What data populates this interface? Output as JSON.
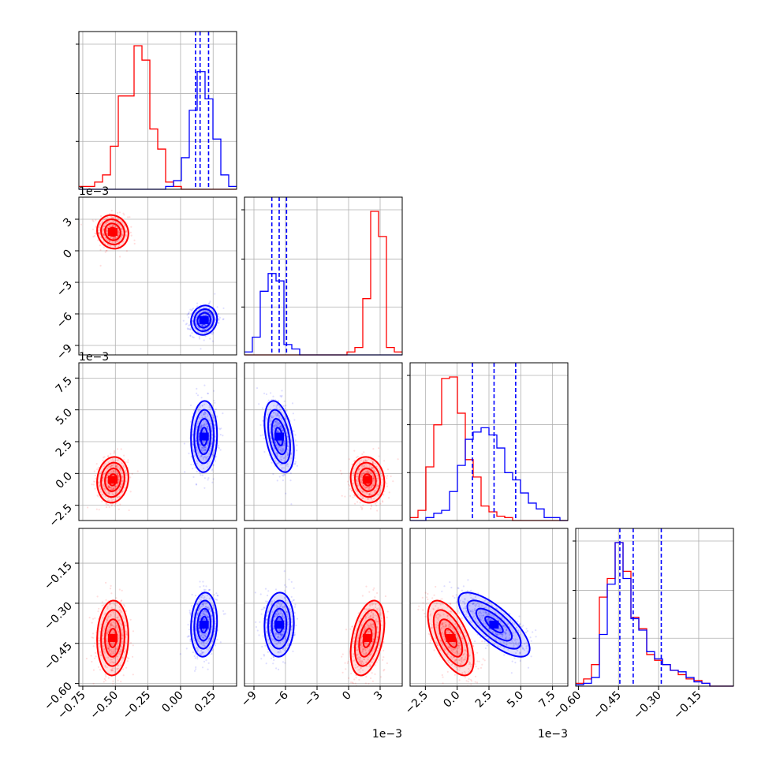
{
  "chart_data": {
    "type": "corner",
    "parameters": [
      {
        "id": "p0",
        "range": [
          -0.78,
          0.43
        ],
        "ticks": [
          -0.75,
          -0.5,
          -0.25,
          0.0,
          0.25
        ],
        "tick_labels": [
          "−0.75",
          "−0.50",
          "−0.25",
          "0.00",
          "0.25"
        ],
        "offset_label": ""
      },
      {
        "id": "p1",
        "range": [
          -0.0099,
          0.0051
        ],
        "ticks": [
          -0.009,
          -0.006,
          -0.003,
          0.0,
          0.003
        ],
        "tick_labels": [
          "−9",
          "−6",
          "−3",
          "0",
          "3"
        ],
        "offset_label": "1e−3"
      },
      {
        "id": "p2",
        "range": [
          -0.0037,
          0.0087
        ],
        "ticks": [
          -0.0025,
          0.0,
          0.0025,
          0.005,
          0.0075
        ],
        "tick_labels": [
          "−2.5",
          "0.0",
          "2.5",
          "5.0",
          "7.5"
        ],
        "offset_label": "1e−3"
      },
      {
        "id": "p3",
        "range": [
          -0.61,
          -0.02
        ],
        "ticks": [
          -0.6,
          -0.45,
          -0.3,
          -0.15
        ],
        "tick_labels": [
          "−0.60",
          "−0.45",
          "−0.30",
          "−0.15"
        ],
        "offset_label": ""
      }
    ],
    "series": [
      {
        "color": "#ff0000",
        "mean": [
          -0.52,
          0.0018,
          -0.0005,
          -0.43
        ],
        "sd": [
          0.06,
          0.0008,
          0.0009,
          0.07
        ],
        "corr": [
          [
            0,
            1,
            -0.1
          ],
          [
            0,
            2,
            0.1
          ],
          [
            0,
            3,
            0.05
          ],
          [
            1,
            2,
            -0.1
          ],
          [
            1,
            3,
            0.4
          ],
          [
            2,
            3,
            -0.6
          ]
        ],
        "hist": [
          {
            "edges": [
              -0.78,
              0.43
            ],
            "counts": [
              0.02,
              0.02,
              0.05,
              0.1,
              0.3,
              0.65,
              0.65,
              1.0,
              0.9,
              0.42,
              0.28,
              0.05,
              0.02,
              0,
              0,
              0,
              0,
              0,
              0,
              0
            ]
          },
          {
            "edges": [
              -0.0099,
              0.0051
            ],
            "counts": [
              0,
              0,
              0,
              0,
              0,
              0,
              0,
              0,
              0,
              0,
              0,
              0,
              0,
              0.02,
              0.05,
              0.38,
              0.97,
              0.8,
              0.05,
              0.02
            ]
          },
          {
            "edges": [
              -0.0037,
              0.0087
            ],
            "counts": [
              0.02,
              0.07,
              0.37,
              0.66,
              0.98,
              0.99,
              0.74,
              0.42,
              0.3,
              0.1,
              0.06,
              0.03,
              0.02,
              0,
              0,
              0,
              0,
              0,
              0,
              0
            ]
          },
          {
            "edges": [
              -0.61,
              -0.02
            ],
            "counts": [
              0.02,
              0.05,
              0.15,
              0.62,
              0.75,
              1.0,
              0.8,
              0.48,
              0.4,
              0.22,
              0.18,
              0.15,
              0.11,
              0.08,
              0.05,
              0.04,
              0.02,
              0,
              0,
              0
            ]
          }
        ],
        "quantile_lines": []
      },
      {
        "color": "#0000ff",
        "mean": [
          0.18,
          -0.0066,
          0.0029,
          -0.38
        ],
        "sd": [
          0.05,
          0.0007,
          0.0014,
          0.06
        ],
        "corr": [
          [
            0,
            1,
            0.1
          ],
          [
            0,
            2,
            0.05
          ],
          [
            0,
            3,
            0.1
          ],
          [
            1,
            2,
            -0.4
          ],
          [
            1,
            3,
            0.05
          ],
          [
            2,
            3,
            -0.75
          ]
        ],
        "hist": [
          {
            "edges": [
              -0.78,
              0.43
            ],
            "counts": [
              0,
              0,
              0,
              0,
              0,
              0,
              0,
              0,
              0,
              0,
              0,
              0.02,
              0.06,
              0.22,
              0.55,
              0.82,
              0.63,
              0.35,
              0.1,
              0.02
            ]
          },
          {
            "edges": [
              -0.0099,
              0.0051
            ],
            "counts": [
              0.02,
              0.12,
              0.43,
              0.55,
              0.5,
              0.07,
              0.04,
              0,
              0,
              0,
              0,
              0,
              0,
              0,
              0,
              0,
              0,
              0,
              0,
              0
            ]
          },
          {
            "edges": [
              -0.0037,
              0.0087
            ],
            "counts": [
              0,
              0,
              0.02,
              0.05,
              0.07,
              0.2,
              0.38,
              0.56,
              0.61,
              0.64,
              0.59,
              0.5,
              0.33,
              0.28,
              0.19,
              0.12,
              0.08,
              0.02,
              0.02,
              0
            ]
          },
          {
            "edges": [
              -0.61,
              -0.02
            ],
            "counts": [
              0.01,
              0.02,
              0.06,
              0.36,
              0.71,
              1.0,
              0.75,
              0.47,
              0.39,
              0.24,
              0.19,
              0.15,
              0.11,
              0.1,
              0.06,
              0.03,
              0.02,
              0,
              0,
              0
            ]
          }
        ],
        "quantile_lines": [
          [
            0.115,
            0.15,
            0.215
          ],
          [
            -0.0073,
            -0.0066,
            -0.0059
          ],
          [
            0.0012,
            0.0029,
            0.0046
          ],
          [
            -0.445,
            -0.395,
            -0.29
          ]
        ]
      }
    ],
    "grid": true,
    "contour_levels": [
      0.5,
      1.0,
      1.5,
      2.0
    ]
  }
}
